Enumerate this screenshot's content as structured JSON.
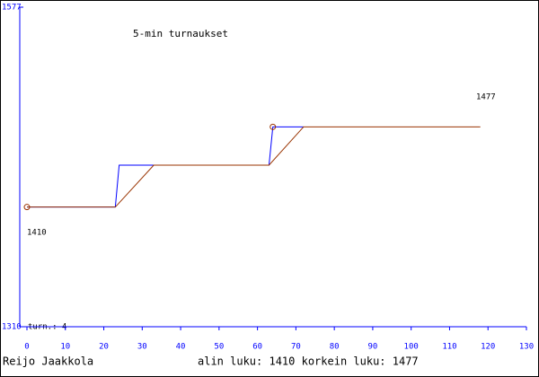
{
  "chart_data": {
    "type": "line",
    "title": "5-min turnaukset",
    "xlim": [
      0,
      130
    ],
    "xticks": [
      0,
      10,
      20,
      30,
      40,
      50,
      60,
      70,
      80,
      90,
      100,
      110,
      120,
      130
    ],
    "ylim": [
      1310,
      1577
    ],
    "yticks": [
      1310,
      1577
    ],
    "series": [
      {
        "color": "#0000ff",
        "x": [
          0,
          23,
          24,
          63,
          64,
          72
        ],
        "values": [
          1410,
          1410,
          1445,
          1445,
          1477,
          1477
        ]
      },
      {
        "color": "#993300",
        "x": [
          0,
          23,
          33,
          63,
          72,
          118
        ],
        "values": [
          1410,
          1410,
          1445,
          1445,
          1477,
          1477
        ]
      }
    ],
    "markers": [
      {
        "series": 0,
        "index": 0
      },
      {
        "series": 0,
        "index": 4
      }
    ],
    "annotations": [
      "1477",
      "1410",
      "turn.: 4"
    ],
    "footer": {
      "author": "Reijo Jaakkola",
      "summary": "alin luku: 1410  korkein luku: 1477"
    }
  }
}
